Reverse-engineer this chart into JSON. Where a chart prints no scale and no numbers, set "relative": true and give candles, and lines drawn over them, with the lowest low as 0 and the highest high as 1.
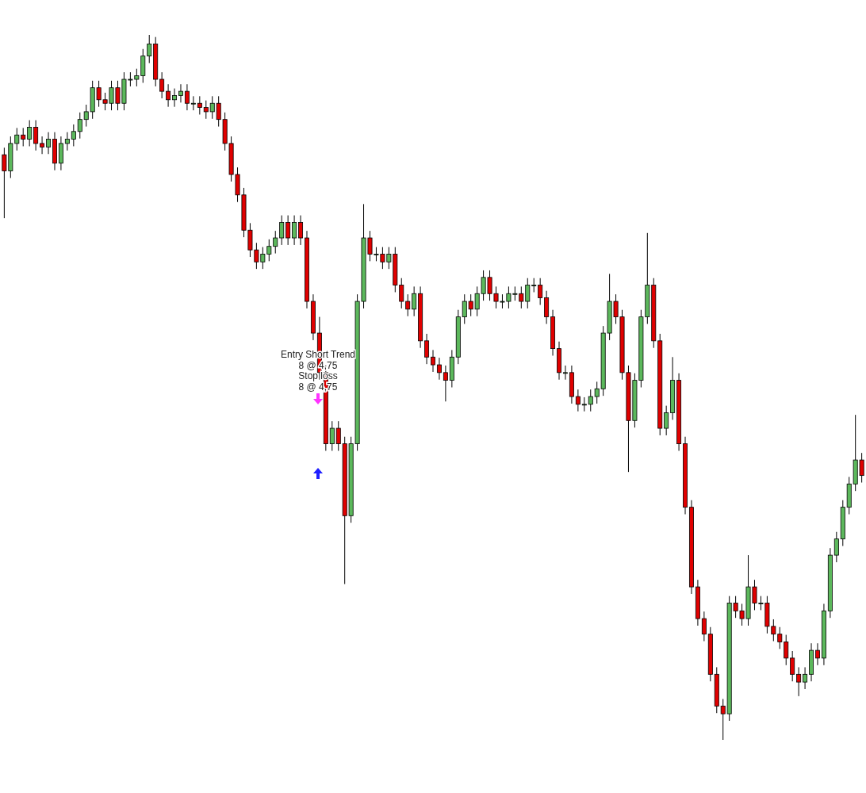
{
  "chart_data": {
    "type": "candlestick",
    "relative": true,
    "categories": [
      null,
      null,
      null,
      null,
      null,
      null,
      null,
      null,
      null,
      null,
      null,
      null,
      null,
      null,
      null,
      null,
      null,
      null,
      null,
      null,
      null,
      null,
      null,
      null,
      null,
      null,
      null,
      null,
      null,
      null,
      null,
      null,
      null,
      null,
      null,
      null,
      null,
      null,
      null,
      null,
      null,
      null,
      null,
      null,
      null,
      null,
      null,
      null,
      null,
      null,
      null,
      null,
      null,
      null,
      null,
      null,
      null,
      null,
      null,
      null,
      null,
      null,
      null,
      null,
      null,
      null,
      null,
      null,
      null,
      null,
      null,
      null,
      null,
      null,
      null,
      null,
      null,
      null,
      null,
      null,
      null,
      null,
      null,
      null,
      null,
      null,
      null,
      null,
      null,
      null,
      null,
      null,
      null,
      null,
      null,
      null,
      null,
      null,
      null,
      null,
      null,
      null,
      null,
      null,
      null,
      null,
      null,
      null,
      null,
      null,
      null,
      null,
      null,
      null,
      null,
      null,
      null,
      null,
      null,
      null,
      null,
      null,
      null,
      null,
      null,
      null,
      null,
      null,
      null,
      null,
      null,
      null,
      null,
      null,
      null,
      null,
      null
    ],
    "ohlc": [
      [
        0.83,
        0.84,
        0.74,
        0.807
      ],
      [
        0.807,
        0.856,
        0.797,
        0.846
      ],
      [
        0.846,
        0.868,
        0.836,
        0.858
      ],
      [
        0.858,
        0.868,
        0.842,
        0.852
      ],
      [
        0.852,
        0.879,
        0.842,
        0.869
      ],
      [
        0.869,
        0.879,
        0.836,
        0.846
      ],
      [
        0.846,
        0.856,
        0.831,
        0.841
      ],
      [
        0.841,
        0.862,
        0.831,
        0.852
      ],
      [
        0.852,
        0.862,
        0.808,
        0.818
      ],
      [
        0.818,
        0.856,
        0.808,
        0.846
      ],
      [
        0.846,
        0.862,
        0.836,
        0.852
      ],
      [
        0.852,
        0.873,
        0.842,
        0.863
      ],
      [
        0.863,
        0.89,
        0.853,
        0.88
      ],
      [
        0.88,
        0.901,
        0.87,
        0.891
      ],
      [
        0.891,
        0.935,
        0.881,
        0.925
      ],
      [
        0.925,
        0.935,
        0.898,
        0.908
      ],
      [
        0.908,
        0.918,
        0.893,
        0.903
      ],
      [
        0.903,
        0.935,
        0.893,
        0.925
      ],
      [
        0.925,
        0.935,
        0.893,
        0.903
      ],
      [
        0.903,
        0.947,
        0.893,
        0.937
      ],
      [
        0.937,
        0.947,
        0.927,
        0.937
      ],
      [
        0.937,
        0.952,
        0.927,
        0.942
      ],
      [
        0.942,
        0.98,
        0.932,
        0.97
      ],
      [
        0.97,
        1.0,
        0.96,
        0.987
      ],
      [
        0.987,
        0.997,
        0.927,
        0.937
      ],
      [
        0.937,
        0.947,
        0.91,
        0.92
      ],
      [
        0.92,
        0.93,
        0.898,
        0.908
      ],
      [
        0.908,
        0.924,
        0.898,
        0.914
      ],
      [
        0.914,
        0.93,
        0.904,
        0.92
      ],
      [
        0.92,
        0.93,
        0.893,
        0.903
      ],
      [
        0.903,
        0.913,
        0.893,
        0.903
      ],
      [
        0.903,
        0.913,
        0.887,
        0.897
      ],
      [
        0.897,
        0.907,
        0.881,
        0.891
      ],
      [
        0.891,
        0.913,
        0.881,
        0.903
      ],
      [
        0.903,
        0.913,
        0.87,
        0.88
      ],
      [
        0.88,
        0.89,
        0.836,
        0.846
      ],
      [
        0.846,
        0.856,
        0.792,
        0.802
      ],
      [
        0.802,
        0.812,
        0.763,
        0.773
      ],
      [
        0.773,
        0.783,
        0.713,
        0.723
      ],
      [
        0.723,
        0.733,
        0.685,
        0.695
      ],
      [
        0.695,
        0.705,
        0.668,
        0.678
      ],
      [
        0.678,
        0.699,
        0.668,
        0.689
      ],
      [
        0.689,
        0.71,
        0.679,
        0.7
      ],
      [
        0.7,
        0.722,
        0.69,
        0.712
      ],
      [
        0.712,
        0.744,
        0.702,
        0.734
      ],
      [
        0.734,
        0.744,
        0.702,
        0.712
      ],
      [
        0.712,
        0.744,
        0.702,
        0.734
      ],
      [
        0.734,
        0.744,
        0.702,
        0.712
      ],
      [
        0.712,
        0.722,
        0.612,
        0.622
      ],
      [
        0.622,
        0.632,
        0.567,
        0.577
      ],
      [
        0.577,
        0.6,
        0.511,
        0.521
      ],
      [
        0.521,
        0.531,
        0.41,
        0.42
      ],
      [
        0.42,
        0.452,
        0.41,
        0.442
      ],
      [
        0.442,
        0.452,
        0.41,
        0.42
      ],
      [
        0.42,
        0.43,
        0.221,
        0.318
      ],
      [
        0.318,
        0.43,
        0.308,
        0.42
      ],
      [
        0.42,
        0.632,
        0.41,
        0.622
      ],
      [
        0.622,
        0.76,
        0.612,
        0.712
      ],
      [
        0.712,
        0.722,
        0.679,
        0.689
      ],
      [
        0.689,
        0.699,
        0.679,
        0.689
      ],
      [
        0.689,
        0.699,
        0.668,
        0.678
      ],
      [
        0.678,
        0.699,
        0.668,
        0.689
      ],
      [
        0.689,
        0.699,
        0.635,
        0.645
      ],
      [
        0.645,
        0.655,
        0.612,
        0.622
      ],
      [
        0.622,
        0.632,
        0.601,
        0.611
      ],
      [
        0.611,
        0.643,
        0.601,
        0.633
      ],
      [
        0.633,
        0.643,
        0.556,
        0.566
      ],
      [
        0.566,
        0.576,
        0.533,
        0.543
      ],
      [
        0.543,
        0.553,
        0.522,
        0.532
      ],
      [
        0.532,
        0.542,
        0.511,
        0.521
      ],
      [
        0.521,
        0.531,
        0.48,
        0.51
      ],
      [
        0.51,
        0.553,
        0.5,
        0.543
      ],
      [
        0.543,
        0.61,
        0.533,
        0.6
      ],
      [
        0.6,
        0.632,
        0.59,
        0.622
      ],
      [
        0.622,
        0.632,
        0.601,
        0.611
      ],
      [
        0.611,
        0.643,
        0.601,
        0.633
      ],
      [
        0.633,
        0.666,
        0.623,
        0.656
      ],
      [
        0.656,
        0.666,
        0.623,
        0.633
      ],
      [
        0.633,
        0.643,
        0.612,
        0.622
      ],
      [
        0.622,
        0.632,
        0.612,
        0.622
      ],
      [
        0.622,
        0.643,
        0.612,
        0.633
      ],
      [
        0.633,
        0.643,
        0.623,
        0.633
      ],
      [
        0.633,
        0.643,
        0.612,
        0.622
      ],
      [
        0.622,
        0.655,
        0.612,
        0.645
      ],
      [
        0.645,
        0.655,
        0.635,
        0.645
      ],
      [
        0.645,
        0.655,
        0.617,
        0.627
      ],
      [
        0.627,
        0.637,
        0.59,
        0.6
      ],
      [
        0.6,
        0.61,
        0.545,
        0.555
      ],
      [
        0.555,
        0.565,
        0.511,
        0.521
      ],
      [
        0.521,
        0.531,
        0.511,
        0.521
      ],
      [
        0.521,
        0.531,
        0.477,
        0.487
      ],
      [
        0.487,
        0.497,
        0.466,
        0.476
      ],
      [
        0.476,
        0.486,
        0.466,
        0.476
      ],
      [
        0.476,
        0.497,
        0.466,
        0.487
      ],
      [
        0.487,
        0.508,
        0.477,
        0.498
      ],
      [
        0.498,
        0.587,
        0.488,
        0.577
      ],
      [
        0.577,
        0.661,
        0.567,
        0.622
      ],
      [
        0.622,
        0.632,
        0.59,
        0.6
      ],
      [
        0.6,
        0.61,
        0.511,
        0.521
      ],
      [
        0.521,
        0.531,
        0.38,
        0.453
      ],
      [
        0.453,
        0.52,
        0.443,
        0.51
      ],
      [
        0.51,
        0.61,
        0.5,
        0.6
      ],
      [
        0.6,
        0.719,
        0.59,
        0.645
      ],
      [
        0.645,
        0.655,
        0.556,
        0.566
      ],
      [
        0.566,
        0.576,
        0.432,
        0.442
      ],
      [
        0.442,
        0.474,
        0.432,
        0.464
      ],
      [
        0.464,
        0.543,
        0.454,
        0.51
      ],
      [
        0.51,
        0.52,
        0.41,
        0.42
      ],
      [
        0.42,
        0.43,
        0.32,
        0.33
      ],
      [
        0.33,
        0.34,
        0.207,
        0.217
      ],
      [
        0.217,
        0.227,
        0.162,
        0.172
      ],
      [
        0.172,
        0.182,
        0.14,
        0.15
      ],
      [
        0.15,
        0.16,
        0.083,
        0.093
      ],
      [
        0.093,
        0.103,
        0.038,
        0.048
      ],
      [
        0.048,
        0.058,
        0.0,
        0.037
      ],
      [
        0.037,
        0.204,
        0.027,
        0.194
      ],
      [
        0.194,
        0.204,
        0.173,
        0.183
      ],
      [
        0.183,
        0.193,
        0.162,
        0.172
      ],
      [
        0.172,
        0.262,
        0.162,
        0.217
      ],
      [
        0.217,
        0.227,
        0.184,
        0.194
      ],
      [
        0.194,
        0.204,
        0.184,
        0.194
      ],
      [
        0.194,
        0.204,
        0.151,
        0.161
      ],
      [
        0.161,
        0.171,
        0.14,
        0.15
      ],
      [
        0.15,
        0.16,
        0.129,
        0.139
      ],
      [
        0.139,
        0.149,
        0.106,
        0.116
      ],
      [
        0.116,
        0.126,
        0.083,
        0.093
      ],
      [
        0.093,
        0.103,
        0.062,
        0.082
      ],
      [
        0.082,
        0.103,
        0.072,
        0.093
      ],
      [
        0.093,
        0.137,
        0.083,
        0.127
      ],
      [
        0.127,
        0.137,
        0.106,
        0.116
      ],
      [
        0.116,
        0.193,
        0.106,
        0.183
      ],
      [
        0.183,
        0.272,
        0.173,
        0.262
      ],
      [
        0.262,
        0.295,
        0.252,
        0.285
      ],
      [
        0.285,
        0.34,
        0.275,
        0.33
      ],
      [
        0.33,
        0.373,
        0.32,
        0.363
      ],
      [
        0.363,
        0.461,
        0.353,
        0.397
      ],
      [
        0.397,
        0.407,
        0.365,
        0.375
      ]
    ],
    "annotations": [
      "Entry Short Trend\n8 @ 4,75",
      "Stop loss\n8 @ 4,75"
    ]
  }
}
